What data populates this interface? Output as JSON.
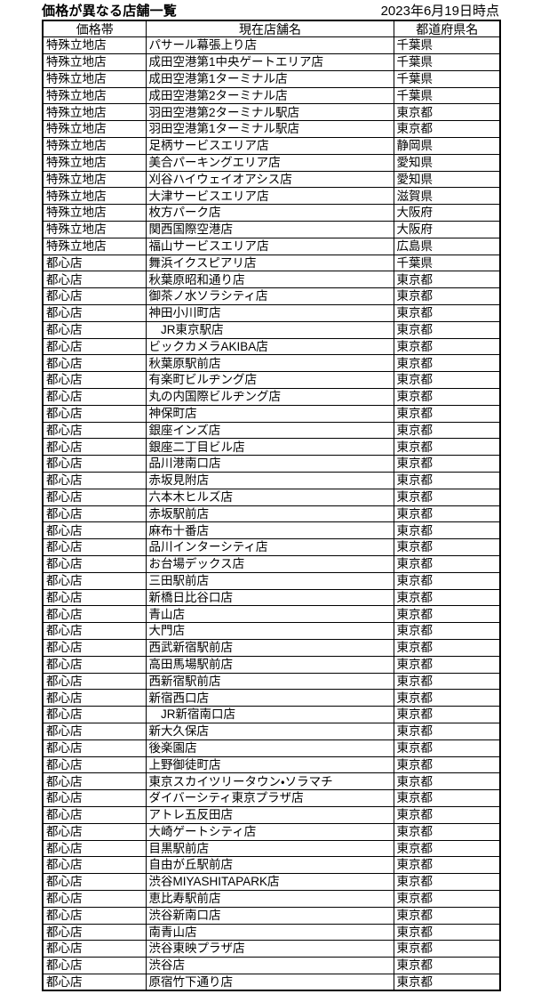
{
  "header": {
    "title": "価格が異なる店舗一覧",
    "date": "2023年6月19日時点"
  },
  "table": {
    "columns": [
      "価格帯",
      "現在店舗名",
      "都道府県名"
    ],
    "rows": [
      [
        "特殊立地店",
        "パサール幕張上り店",
        "千葉県"
      ],
      [
        "特殊立地店",
        "成田空港第1中央ゲートエリア店",
        "千葉県"
      ],
      [
        "特殊立地店",
        "成田空港第1ターミナル店",
        "千葉県"
      ],
      [
        "特殊立地店",
        "成田空港第2ターミナル店",
        "千葉県"
      ],
      [
        "特殊立地店",
        "羽田空港第2ターミナル駅店",
        "東京都"
      ],
      [
        "特殊立地店",
        "羽田空港第1ターミナル駅店",
        "東京都"
      ],
      [
        "特殊立地店",
        "足柄サービスエリア店",
        "静岡県"
      ],
      [
        "特殊立地店",
        "美合パーキングエリア店",
        "愛知県"
      ],
      [
        "特殊立地店",
        "刈谷ハイウェイオアシス店",
        "愛知県"
      ],
      [
        "特殊立地店",
        "大津サービスエリア店",
        "滋賀県"
      ],
      [
        "特殊立地店",
        "枚方パーク店",
        "大阪府"
      ],
      [
        "特殊立地店",
        "関西国際空港店",
        "大阪府"
      ],
      [
        "特殊立地店",
        "福山サービスエリア店",
        "広島県"
      ],
      [
        "都心店",
        "舞浜イクスピアリ店",
        "千葉県"
      ],
      [
        "都心店",
        "秋葉原昭和通り店",
        "東京都"
      ],
      [
        "都心店",
        "御茶ノ水ソラシティ店",
        "東京都"
      ],
      [
        "都心店",
        "神田小川町店",
        "東京都"
      ],
      [
        "都心店",
        "　JR東京駅店",
        "東京都"
      ],
      [
        "都心店",
        "ビックカメラAKIBA店",
        "東京都"
      ],
      [
        "都心店",
        "秋葉原駅前店",
        "東京都"
      ],
      [
        "都心店",
        "有楽町ビルヂング店",
        "東京都"
      ],
      [
        "都心店",
        "丸の内国際ビルヂング店",
        "東京都"
      ],
      [
        "都心店",
        "神保町店",
        "東京都"
      ],
      [
        "都心店",
        "銀座インズ店",
        "東京都"
      ],
      [
        "都心店",
        "銀座二丁目ビル店",
        "東京都"
      ],
      [
        "都心店",
        "品川港南口店",
        "東京都"
      ],
      [
        "都心店",
        "赤坂見附店",
        "東京都"
      ],
      [
        "都心店",
        "六本木ヒルズ店",
        "東京都"
      ],
      [
        "都心店",
        "赤坂駅前店",
        "東京都"
      ],
      [
        "都心店",
        "麻布十番店",
        "東京都"
      ],
      [
        "都心店",
        "品川インターシティ店",
        "東京都"
      ],
      [
        "都心店",
        "お台場デックス店",
        "東京都"
      ],
      [
        "都心店",
        "三田駅前店",
        "東京都"
      ],
      [
        "都心店",
        "新橋日比谷口店",
        "東京都"
      ],
      [
        "都心店",
        "青山店",
        "東京都"
      ],
      [
        "都心店",
        "大門店",
        "東京都"
      ],
      [
        "都心店",
        "西武新宿駅前店",
        "東京都"
      ],
      [
        "都心店",
        "高田馬場駅前店",
        "東京都"
      ],
      [
        "都心店",
        "西新宿駅前店",
        "東京都"
      ],
      [
        "都心店",
        "新宿西口店",
        "東京都"
      ],
      [
        "都心店",
        "　JR新宿南口店",
        "東京都"
      ],
      [
        "都心店",
        "新大久保店",
        "東京都"
      ],
      [
        "都心店",
        "後楽園店",
        "東京都"
      ],
      [
        "都心店",
        "上野御徒町店",
        "東京都"
      ],
      [
        "都心店",
        "東京スカイツリータウン・ソラマチ",
        "東京都"
      ],
      [
        "都心店",
        "ダイバーシティ東京プラザ店",
        "東京都"
      ],
      [
        "都心店",
        "アトレ五反田店",
        "東京都"
      ],
      [
        "都心店",
        "大崎ゲートシティ店",
        "東京都"
      ],
      [
        "都心店",
        "目黒駅前店",
        "東京都"
      ],
      [
        "都心店",
        "自由が丘駅前店",
        "東京都"
      ],
      [
        "都心店",
        "渋谷MIYASHITAPARK店",
        "東京都"
      ],
      [
        "都心店",
        "恵比寿駅前店",
        "東京都"
      ],
      [
        "都心店",
        "渋谷新南口店",
        "東京都"
      ],
      [
        "都心店",
        "南青山店",
        "東京都"
      ],
      [
        "都心店",
        "渋谷東映プラザ店",
        "東京都"
      ],
      [
        "都心店",
        "渋谷店",
        "東京都"
      ],
      [
        "都心店",
        "原宿竹下通り店",
        "東京都"
      ]
    ]
  }
}
